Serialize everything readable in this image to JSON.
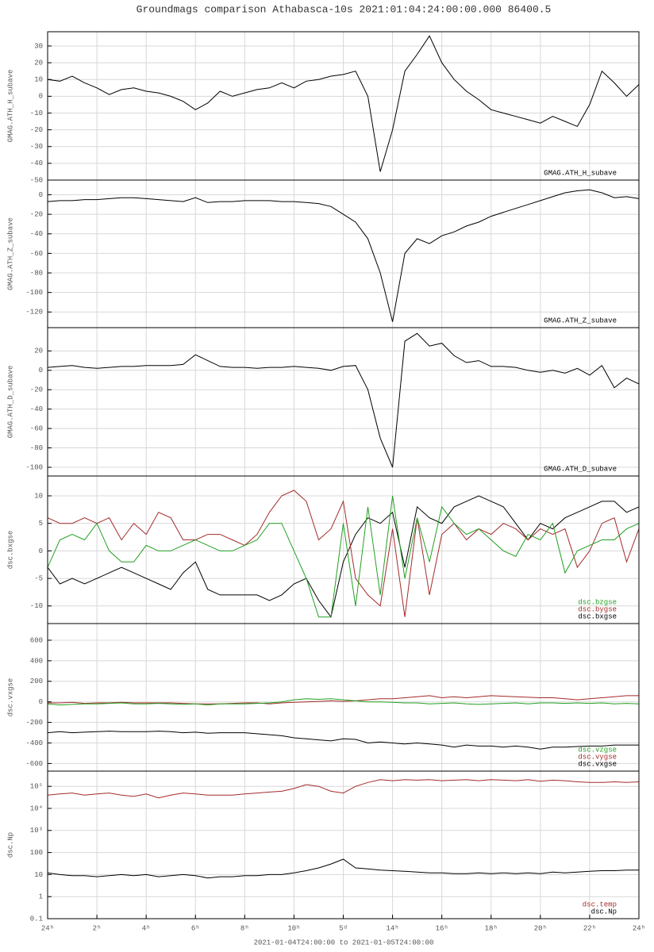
{
  "title": "Groundmags comparison Athabasca-10s 2021:01:04:24:00:00.000 86400.5",
  "x_range_label": "2021-01-04T24:00:00 to 2021-01-05T24:00:00",
  "chart_data": [
    {
      "type": "line",
      "ylabel": "GMAG.ATH_H_subave",
      "legend": "lower right",
      "grid": true,
      "x": [
        0,
        0.5,
        1,
        1.5,
        2,
        2.5,
        3,
        3.5,
        4,
        4.5,
        5,
        5.5,
        6,
        6.5,
        7,
        7.5,
        8,
        8.5,
        9,
        9.5,
        10,
        10.5,
        11,
        11.5,
        12,
        12.5,
        13,
        13.5,
        14,
        14.5,
        15,
        15.5,
        16,
        16.5,
        17,
        17.5,
        18,
        18.5,
        19,
        19.5,
        20,
        20.5,
        21,
        21.5,
        22,
        22.5,
        23,
        23.5,
        24
      ],
      "xlim": [
        0,
        24
      ],
      "ylim": [
        -50,
        38.5
      ],
      "yticks": [
        -50,
        -40,
        -30,
        -20,
        -10,
        0,
        10,
        20,
        30
      ],
      "series": [
        {
          "name": "GMAG.ATH_H_subave",
          "color": "#000000",
          "values": [
            10,
            9,
            12,
            8,
            5,
            1,
            4,
            5,
            3,
            2,
            0,
            -3,
            -8,
            -4,
            3,
            0,
            2,
            4,
            5,
            8,
            5,
            9,
            10,
            12,
            13,
            15,
            0,
            -45,
            -20,
            15,
            25,
            36,
            20,
            10,
            3,
            -2,
            -8,
            -10,
            -12,
            -14,
            -16,
            -12,
            -15,
            -18,
            -5,
            15,
            8,
            0,
            7
          ]
        }
      ]
    },
    {
      "type": "line",
      "ylabel": "GMAG.ATH_Z_subave",
      "legend": "lower right",
      "grid": true,
      "x": [
        0,
        0.5,
        1,
        1.5,
        2,
        2.5,
        3,
        3.5,
        4,
        4.5,
        5,
        5.5,
        6,
        6.5,
        7,
        7.5,
        8,
        8.5,
        9,
        9.5,
        10,
        10.5,
        11,
        11.5,
        12,
        12.5,
        13,
        13.5,
        14,
        14.5,
        15,
        15.5,
        16,
        16.5,
        17,
        17.5,
        18,
        18.5,
        19,
        19.5,
        20,
        20.5,
        21,
        21.5,
        22,
        22.5,
        23,
        23.5,
        24
      ],
      "xlim": [
        0,
        24
      ],
      "ylim": [
        -136,
        15
      ],
      "yticks": [
        -120,
        -100,
        -80,
        -60,
        -40,
        -20,
        0
      ],
      "series": [
        {
          "name": "GMAG.ATH_Z_subave",
          "color": "#000000",
          "values": [
            -7,
            -6,
            -6,
            -5,
            -5,
            -4,
            -3,
            -3,
            -4,
            -5,
            -6,
            -7,
            -3,
            -8,
            -7,
            -7,
            -6,
            -6,
            -6,
            -7,
            -7,
            -8,
            -9,
            -12,
            -20,
            -28,
            -45,
            -80,
            -130,
            -60,
            -45,
            -50,
            -42,
            -38,
            -32,
            -28,
            -22,
            -18,
            -14,
            -10,
            -6,
            -2,
            2,
            4,
            5,
            2,
            -3,
            -2,
            -4
          ]
        }
      ]
    },
    {
      "type": "line",
      "ylabel": "GMAG.ATH_D_subave",
      "legend": "lower right",
      "grid": true,
      "x": [
        0,
        0.5,
        1,
        1.5,
        2,
        2.5,
        3,
        3.5,
        4,
        4.5,
        5,
        5.5,
        6,
        6.5,
        7,
        7.5,
        8,
        8.5,
        9,
        9.5,
        10,
        10.5,
        11,
        11.5,
        12,
        12.5,
        13,
        13.5,
        14,
        14.5,
        15,
        15.5,
        16,
        16.5,
        17,
        17.5,
        18,
        18.5,
        19,
        19.5,
        20,
        20.5,
        21,
        21.5,
        22,
        22.5,
        23,
        23.5,
        24
      ],
      "xlim": [
        0,
        24
      ],
      "ylim": [
        -109,
        44
      ],
      "yticks": [
        -100,
        -80,
        -60,
        -40,
        -20,
        0,
        20
      ],
      "series": [
        {
          "name": "GMAG.ATH_D_subave",
          "color": "#000000",
          "values": [
            3,
            4,
            5,
            3,
            2,
            3,
            4,
            4,
            5,
            5,
            5,
            6,
            16,
            10,
            4,
            3,
            3,
            2,
            3,
            3,
            4,
            3,
            2,
            0,
            4,
            5,
            -20,
            -70,
            -100,
            30,
            38,
            25,
            28,
            15,
            8,
            10,
            4,
            4,
            3,
            0,
            -2,
            0,
            -3,
            2,
            -5,
            5,
            -18,
            -8,
            -14
          ]
        }
      ]
    },
    {
      "type": "line",
      "ylabel": "dsc.bxgse",
      "legend": "lower right",
      "grid": true,
      "x": [
        0,
        0.5,
        1,
        1.5,
        2,
        2.5,
        3,
        3.5,
        4,
        4.5,
        5,
        5.5,
        6,
        6.5,
        7,
        7.5,
        8,
        8.5,
        9,
        9.5,
        10,
        10.5,
        11,
        11.5,
        12,
        12.5,
        13,
        13.5,
        14,
        14.5,
        15,
        15.5,
        16,
        16.5,
        17,
        17.5,
        18,
        18.5,
        19,
        19.5,
        20,
        20.5,
        21,
        21.5,
        22,
        22.5,
        23,
        23.5,
        24
      ],
      "xlim": [
        0,
        24
      ],
      "ylim": [
        -13.2,
        13.6
      ],
      "yticks": [
        -10,
        -5,
        0,
        5,
        10
      ],
      "series": [
        {
          "name": "dsc.bxgse",
          "color": "#000000",
          "values": [
            -3,
            -6,
            -5,
            -6,
            -5,
            -4,
            -3,
            -4,
            -5,
            -6,
            -7,
            -4,
            -2,
            -7,
            -8,
            -8,
            -8,
            -8,
            -9,
            -8,
            -6,
            -5,
            -9,
            -12,
            -2,
            3,
            6,
            5,
            7,
            -3,
            8,
            6,
            5,
            8,
            9,
            10,
            9,
            8,
            5,
            2,
            5,
            4,
            6,
            7,
            8,
            9,
            9,
            7,
            8
          ]
        },
        {
          "name": "dsc.bygse",
          "color": "#a52a2a",
          "values": [
            6,
            5,
            5,
            6,
            5,
            6,
            2,
            5,
            3,
            7,
            6,
            2,
            2,
            3,
            3,
            2,
            1,
            3,
            7,
            10,
            11,
            9,
            2,
            4,
            9,
            -5,
            -8,
            -10,
            4,
            -12,
            6,
            -8,
            3,
            5,
            2,
            4,
            3,
            5,
            4,
            2,
            4,
            3,
            4,
            -3,
            0,
            5,
            6,
            -2,
            4
          ]
        },
        {
          "name": "dsc.bzgse",
          "color": "#22a022",
          "values": [
            -3,
            2,
            3,
            2,
            5,
            0,
            -2,
            -2,
            1,
            0,
            0,
            1,
            2,
            1,
            0,
            0,
            1,
            2,
            5,
            5,
            0,
            -5,
            -12,
            -12,
            5,
            -10,
            8,
            -8,
            10,
            -5,
            6,
            -2,
            8,
            5,
            3,
            4,
            2,
            0,
            -1,
            3,
            2,
            5,
            -4,
            0,
            1,
            2,
            2,
            4,
            5
          ]
        }
      ]
    },
    {
      "type": "line",
      "ylabel": "dsc.vxgse",
      "legend": "lower right",
      "grid": true,
      "x": [
        0,
        0.5,
        1,
        1.5,
        2,
        2.5,
        3,
        3.5,
        4,
        4.5,
        5,
        5.5,
        6,
        6.5,
        7,
        7.5,
        8,
        8.5,
        9,
        9.5,
        10,
        10.5,
        11,
        11.5,
        12,
        12.5,
        13,
        13.5,
        14,
        14.5,
        15,
        15.5,
        16,
        16.5,
        17,
        17.5,
        18,
        18.5,
        19,
        19.5,
        20,
        20.5,
        21,
        21.5,
        22,
        22.5,
        23,
        23.5,
        24
      ],
      "xlim": [
        0,
        24
      ],
      "ylim": [
        -674,
        762
      ],
      "yticks": [
        -600,
        -400,
        -200,
        0,
        200,
        400,
        600
      ],
      "series": [
        {
          "name": "dsc.vxgse",
          "color": "#000000",
          "values": [
            -300,
            -290,
            -300,
            -295,
            -290,
            -285,
            -290,
            -290,
            -290,
            -285,
            -290,
            -300,
            -295,
            -305,
            -300,
            -300,
            -300,
            -310,
            -320,
            -330,
            -350,
            -360,
            -370,
            -380,
            -360,
            -365,
            -400,
            -390,
            -400,
            -410,
            -400,
            -410,
            -420,
            -440,
            -420,
            -430,
            -430,
            -440,
            -430,
            -440,
            -460,
            -440,
            -440,
            -435,
            -430,
            -430,
            -420,
            -420,
            -420
          ]
        },
        {
          "name": "dsc.vygse",
          "color": "#a52a2a",
          "values": [
            -10,
            -10,
            -5,
            -15,
            -10,
            -10,
            -5,
            -10,
            -10,
            -10,
            -10,
            -15,
            -20,
            -20,
            -20,
            -15,
            -10,
            -10,
            -20,
            -10,
            -5,
            0,
            5,
            10,
            5,
            10,
            20,
            30,
            30,
            40,
            50,
            60,
            40,
            50,
            40,
            50,
            60,
            55,
            50,
            45,
            40,
            40,
            30,
            20,
            30,
            40,
            50,
            60,
            60
          ]
        },
        {
          "name": "dsc.vzgse",
          "color": "#22a022",
          "values": [
            -20,
            -30,
            -25,
            -20,
            -20,
            -15,
            -10,
            -20,
            -20,
            -15,
            -20,
            -25,
            -20,
            -30,
            -20,
            -20,
            -20,
            -15,
            -10,
            0,
            20,
            30,
            25,
            30,
            20,
            10,
            0,
            0,
            -5,
            -10,
            -10,
            -20,
            -15,
            -10,
            -20,
            -25,
            -20,
            -15,
            -10,
            -20,
            -10,
            -10,
            -15,
            -10,
            -15,
            -10,
            -20,
            -15,
            -20
          ]
        }
      ]
    },
    {
      "type": "line",
      "ylabel": "dsc.Np",
      "legend": "lower right",
      "grid": true,
      "log_scale": true,
      "x": [
        0,
        0.5,
        1,
        1.5,
        2,
        2.5,
        3,
        3.5,
        4,
        4.5,
        5,
        5.5,
        6,
        6.5,
        7,
        7.5,
        8,
        8.5,
        9,
        9.5,
        10,
        10.5,
        11,
        11.5,
        12,
        12.5,
        13,
        13.5,
        14,
        14.5,
        15,
        15.5,
        16,
        16.5,
        17,
        17.5,
        18,
        18.5,
        19,
        19.5,
        20,
        20.5,
        21,
        21.5,
        22,
        22.5,
        23,
        23.5,
        24
      ],
      "xlim": [
        0,
        24
      ],
      "xticks": [
        {
          "value": 0,
          "label": "24ʰ"
        },
        {
          "value": 2,
          "label": "2ʰ"
        },
        {
          "value": 4,
          "label": "4ʰ"
        },
        {
          "value": 6,
          "label": "6ʰ"
        },
        {
          "value": 8,
          "label": "8ʰ"
        },
        {
          "value": 10,
          "label": "10ʰ"
        },
        {
          "value": 12,
          "label": "5ᵈ"
        },
        {
          "value": 14,
          "label": "14ʰ"
        },
        {
          "value": 16,
          "label": "16ʰ"
        },
        {
          "value": 18,
          "label": "18ʰ"
        },
        {
          "value": 20,
          "label": "20ʰ"
        },
        {
          "value": 22,
          "label": "22ʰ"
        },
        {
          "value": 24,
          "label": "24ʰ"
        }
      ],
      "ylim": [
        0.1,
        490000
      ],
      "yticks": [
        0.1,
        1,
        10,
        100,
        {
          "value": 1000,
          "label": "10³"
        },
        {
          "value": 10000,
          "label": "10⁴"
        },
        {
          "value": 100000,
          "label": "10⁵"
        }
      ],
      "series": [
        {
          "name": "dsc.Np",
          "color": "#000000",
          "values": [
            12,
            10,
            9,
            9,
            8,
            9,
            10,
            9,
            10,
            8,
            9,
            10,
            9,
            7,
            8,
            8,
            9,
            9,
            10,
            10,
            12,
            15,
            20,
            30,
            50,
            20,
            18,
            16,
            15,
            14,
            13,
            12,
            12,
            11,
            11,
            12,
            11,
            12,
            11,
            12,
            11,
            13,
            12,
            13,
            14,
            15,
            15,
            16,
            16
          ]
        },
        {
          "name": "dsc.temp",
          "color": "#a52a2a",
          "values": [
            40000,
            45000,
            50000,
            40000,
            45000,
            50000,
            40000,
            35000,
            45000,
            30000,
            40000,
            50000,
            45000,
            40000,
            40000,
            40000,
            45000,
            50000,
            55000,
            60000,
            80000,
            120000,
            100000,
            60000,
            50000,
            100000,
            150000,
            200000,
            180000,
            200000,
            190000,
            200000,
            180000,
            190000,
            200000,
            180000,
            200000,
            190000,
            180000,
            200000,
            170000,
            190000,
            180000,
            160000,
            150000,
            150000,
            160000,
            150000,
            160000
          ]
        }
      ]
    }
  ]
}
